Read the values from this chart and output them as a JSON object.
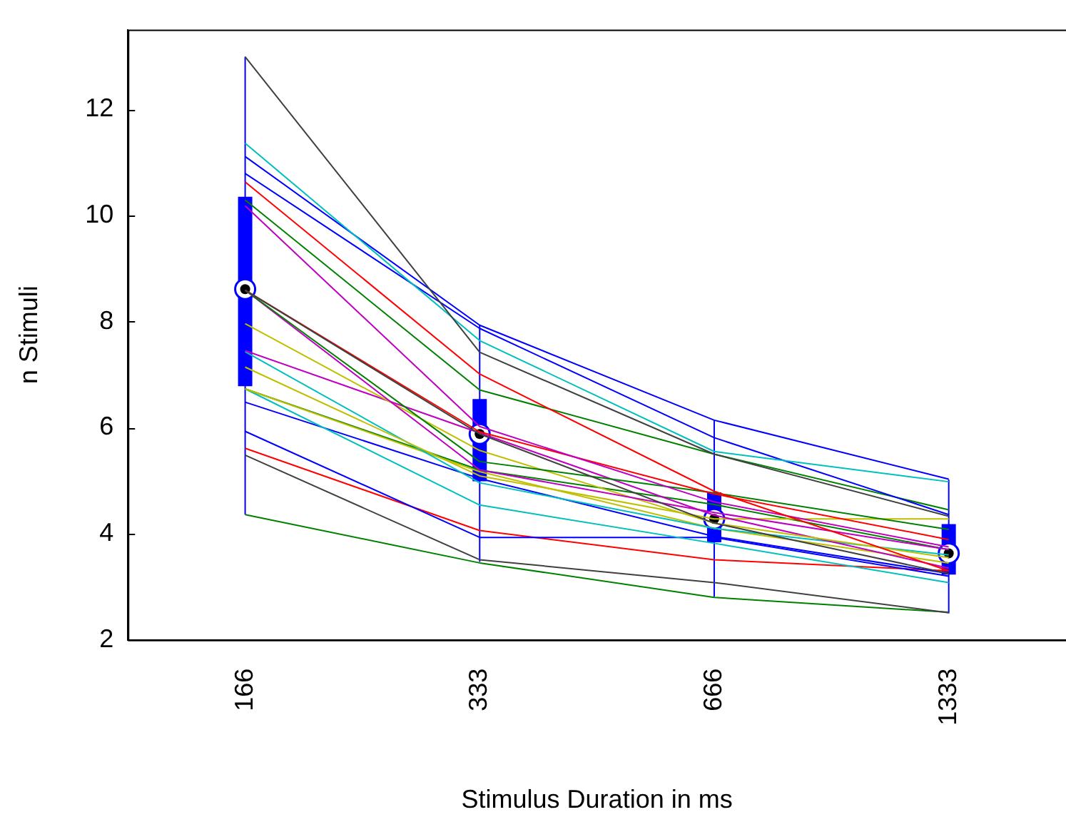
{
  "chart_data": {
    "type": "box",
    "xlabel": "Stimulus Duration in ms",
    "ylabel": "n Stimuli",
    "categories": [
      "166",
      "333",
      "666",
      "1333"
    ],
    "ylim": [
      2,
      13.5
    ],
    "yticks": [
      2,
      4,
      6,
      8,
      10,
      12
    ],
    "grid": false,
    "legend": false,
    "marker": "none",
    "line_style": "solid",
    "boxes": [
      {
        "low": 4.36,
        "q1": 6.78,
        "median": 8.61,
        "q3": 10.35,
        "high": 12.99
      },
      {
        "low": 3.47,
        "q1": 4.99,
        "median": 5.88,
        "q3": 6.54,
        "high": 7.93
      },
      {
        "low": 2.81,
        "q1": 3.84,
        "median": 4.28,
        "q3": 4.78,
        "high": 6.15
      },
      {
        "low": 2.5,
        "q1": 3.23,
        "median": 3.63,
        "q3": 4.18,
        "high": 5.02
      }
    ],
    "color": "#0000ff",
    "series": [
      {
        "type": "line",
        "color": "#404040",
        "values": [
          12.99,
          7.42,
          5.5,
          4.33
        ]
      },
      {
        "type": "line",
        "color": "#00bfbf",
        "values": [
          11.36,
          7.64,
          5.55,
          4.98
        ]
      },
      {
        "type": "line",
        "color": "#0000ff",
        "values": [
          11.11,
          7.93,
          6.14,
          5.03
        ]
      },
      {
        "type": "line",
        "color": "#0000ff",
        "values": [
          10.79,
          7.87,
          5.81,
          4.36
        ]
      },
      {
        "type": "line",
        "color": "#ff0000",
        "values": [
          10.63,
          7.01,
          4.8,
          3.3
        ]
      },
      {
        "type": "line",
        "color": "#008000",
        "values": [
          10.29,
          6.71,
          5.5,
          4.45
        ]
      },
      {
        "type": "line",
        "color": "#bf00bf",
        "values": [
          10.18,
          6.02,
          4.6,
          3.75
        ]
      },
      {
        "type": "line",
        "color": "#404040",
        "values": [
          8.59,
          5.88,
          4.2,
          3.25
        ]
      },
      {
        "type": "line",
        "color": "#ff0000",
        "values": [
          8.59,
          5.92,
          4.75,
          3.89
        ]
      },
      {
        "type": "line",
        "color": "#008000",
        "values": [
          8.59,
          5.36,
          4.77,
          4.08
        ]
      },
      {
        "type": "line",
        "color": "#bf00bf",
        "values": [
          8.59,
          5.2,
          4.4,
          3.7
        ]
      },
      {
        "type": "line",
        "color": "#bfbf00",
        "values": [
          7.96,
          5.57,
          4.2,
          3.55
        ]
      },
      {
        "type": "line",
        "color": "#bf00bf",
        "values": [
          7.45,
          5.9,
          4.35,
          3.35
        ]
      },
      {
        "type": "line",
        "color": "#bfbf00",
        "values": [
          7.14,
          5.09,
          4.28,
          4.28
        ]
      },
      {
        "type": "line",
        "color": "#00bfbf",
        "values": [
          7.43,
          4.96,
          4.1,
          3.6
        ]
      },
      {
        "type": "line",
        "color": "#bfbf00",
        "values": [
          6.73,
          5.17,
          4.1,
          3.45
        ]
      },
      {
        "type": "line",
        "color": "#008000",
        "values": [
          6.73,
          5.2,
          4.55,
          3.7
        ]
      },
      {
        "type": "line",
        "color": "#00bfbf",
        "values": [
          6.73,
          4.54,
          3.82,
          3.08
        ]
      },
      {
        "type": "line",
        "color": "#0000ff",
        "values": [
          6.48,
          5.04,
          3.95,
          3.25
        ]
      },
      {
        "type": "line",
        "color": "#0000ff",
        "values": [
          5.93,
          3.93,
          3.93,
          3.2
        ]
      },
      {
        "type": "line",
        "color": "#ff0000",
        "values": [
          5.61,
          4.06,
          3.51,
          3.3
        ]
      },
      {
        "type": "line",
        "color": "#404040",
        "values": [
          5.48,
          3.51,
          3.08,
          2.51
        ]
      },
      {
        "type": "line",
        "color": "#008000",
        "values": [
          4.36,
          3.45,
          2.8,
          2.52
        ]
      }
    ]
  }
}
